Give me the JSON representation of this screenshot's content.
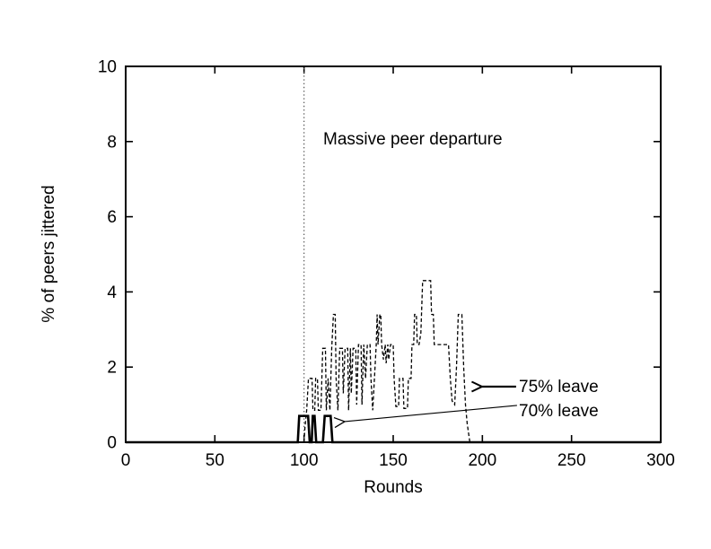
{
  "figure": {
    "background": "#ffffff",
    "ink": "#000000"
  },
  "chart_data": {
    "type": "line",
    "title": "",
    "xlabel": "Rounds",
    "ylabel": "% of peers jittered",
    "xlim": [
      0,
      300
    ],
    "ylim": [
      0,
      10
    ],
    "xticks": [
      0,
      50,
      100,
      150,
      200,
      250,
      300
    ],
    "yticks": [
      0,
      2,
      4,
      6,
      8,
      10
    ],
    "grid": false,
    "legend_position": "inline-callouts",
    "vline": {
      "x": 100,
      "style": "dotted",
      "color": "#555555",
      "label": "Massive peer departure"
    },
    "callouts": [
      {
        "text": "75% leave",
        "arrow_from": [
          218.9,
          1.48
        ],
        "arrow_to": [
          199.8,
          1.48
        ],
        "weight": "thick"
      },
      {
        "text": "70% leave",
        "arrow_from": [
          219.4,
          0.98
        ],
        "arrow_to": [
          122.8,
          0.55
        ],
        "weight": "thin"
      }
    ],
    "series": [
      {
        "name": "75% leave",
        "style": "dashed",
        "color": "#000000",
        "points": [
          [
            100,
            0
          ],
          [
            100.5,
            0.4
          ],
          [
            101.5,
            0.85
          ],
          [
            102.5,
            1.7
          ],
          [
            104.5,
            1.7
          ],
          [
            105,
            0.85
          ],
          [
            106,
            0.85
          ],
          [
            106.5,
            1.7
          ],
          [
            107.5,
            1.7
          ],
          [
            108,
            0.85
          ],
          [
            109.5,
            0.85
          ],
          [
            110.5,
            2.5
          ],
          [
            112,
            2.5
          ],
          [
            112.5,
            0.85
          ],
          [
            113.5,
            1.7
          ],
          [
            114.5,
            0.85
          ],
          [
            115.5,
            2.5
          ],
          [
            116.5,
            3.4
          ],
          [
            117.5,
            3.4
          ],
          [
            118,
            1.7
          ],
          [
            119,
            0.85
          ],
          [
            120,
            2.5
          ],
          [
            121.5,
            2.5
          ],
          [
            122,
            1.3
          ],
          [
            123,
            2.5
          ],
          [
            124.5,
            2.5
          ],
          [
            125,
            0.85
          ],
          [
            126,
            2.5
          ],
          [
            126.5,
            1.3
          ],
          [
            127.5,
            2.5
          ],
          [
            129,
            2.5
          ],
          [
            129.5,
            1.0
          ],
          [
            130.5,
            2.6
          ],
          [
            132,
            2.6
          ],
          [
            132.5,
            1.0
          ],
          [
            133.5,
            2.6
          ],
          [
            134.5,
            1.7
          ],
          [
            135.5,
            2.6
          ],
          [
            137,
            2.6
          ],
          [
            137.5,
            1.7
          ],
          [
            138.5,
            0.85
          ],
          [
            139.5,
            1.7
          ],
          [
            140.5,
            2.6
          ],
          [
            141,
            3.4
          ],
          [
            141.5,
            2.6
          ],
          [
            142.5,
            3.4
          ],
          [
            143,
            3.4
          ],
          [
            143.5,
            2.6
          ],
          [
            144.5,
            2.2
          ],
          [
            145.5,
            2.6
          ],
          [
            146,
            2.1
          ],
          [
            147,
            2.6
          ],
          [
            147.5,
            2.2
          ],
          [
            148.5,
            2.6
          ],
          [
            150,
            2.6
          ],
          [
            150.5,
            1.7
          ],
          [
            151.5,
            0.95
          ],
          [
            153,
            0.95
          ],
          [
            153.5,
            1.7
          ],
          [
            155.5,
            1.7
          ],
          [
            156,
            0.9
          ],
          [
            158,
            0.9
          ],
          [
            158.5,
            1.7
          ],
          [
            160,
            1.7
          ],
          [
            160.5,
            2.6
          ],
          [
            161.5,
            2.6
          ],
          [
            162,
            3.4
          ],
          [
            163,
            3.4
          ],
          [
            163.5,
            2.6
          ],
          [
            164.5,
            2.6
          ],
          [
            165.5,
            2.9
          ],
          [
            166,
            3.6
          ],
          [
            166.5,
            4.3
          ],
          [
            171,
            4.3
          ],
          [
            171.5,
            3.4
          ],
          [
            172.5,
            3.4
          ],
          [
            173,
            2.6
          ],
          [
            176,
            2.6
          ],
          [
            181,
            2.6
          ],
          [
            182,
            1.7
          ],
          [
            183,
            1.1
          ],
          [
            184.5,
            1.0
          ],
          [
            185.5,
            2.0
          ],
          [
            186.5,
            3.4
          ],
          [
            188.5,
            3.4
          ],
          [
            189.5,
            2.0
          ],
          [
            190.5,
            1.0
          ],
          [
            191.5,
            0.5
          ],
          [
            193,
            0
          ],
          [
            197,
            0
          ]
        ]
      },
      {
        "name": "70% leave",
        "style": "solid",
        "color": "#000000",
        "points": [
          [
            0,
            0
          ],
          [
            96.5,
            0
          ],
          [
            97.3,
            0.7
          ],
          [
            102.3,
            0.7
          ],
          [
            103.2,
            0
          ],
          [
            104.3,
            0
          ],
          [
            104.9,
            0.7
          ],
          [
            105.9,
            0.7
          ],
          [
            106.8,
            0
          ],
          [
            110.6,
            0
          ],
          [
            111.6,
            0.7
          ],
          [
            114.9,
            0.7
          ],
          [
            115.9,
            0
          ],
          [
            300,
            0
          ]
        ]
      }
    ]
  }
}
